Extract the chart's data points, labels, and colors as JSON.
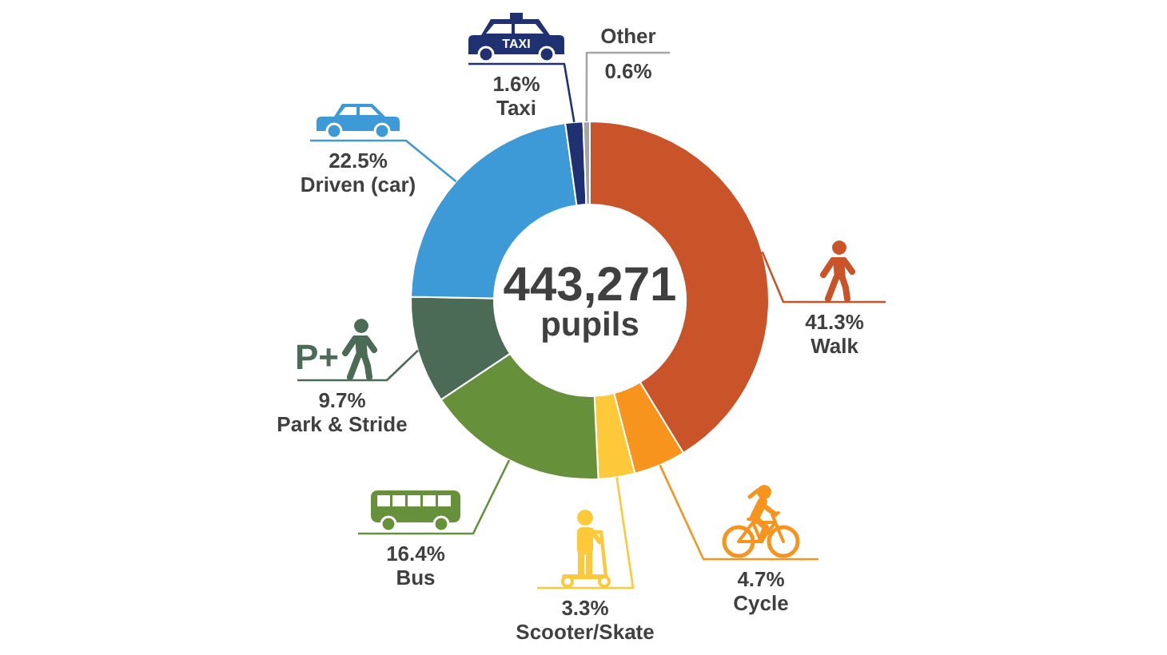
{
  "chart_data": {
    "type": "donut",
    "categories": [
      "Walk",
      "Cycle",
      "Scooter/Skate",
      "Bus",
      "Park & Stride",
      "Driven (car)",
      "Taxi",
      "Other"
    ],
    "values": [
      41.3,
      4.7,
      3.3,
      16.4,
      9.7,
      22.5,
      1.6,
      0.6
    ],
    "colors": [
      "#c9542a",
      "#f7941d",
      "#fdc93a",
      "#67903a",
      "#4b6b56",
      "#3e9ad6",
      "#1f3170",
      "#a5a5a5"
    ],
    "value_labels": [
      "41.3%",
      "4.7%",
      "3.3%",
      "16.4%",
      "9.7%",
      "22.5%",
      "1.6%",
      "0.6%"
    ],
    "annotations": [
      "443,271",
      "pupils",
      "TAXI",
      "P+"
    ]
  }
}
